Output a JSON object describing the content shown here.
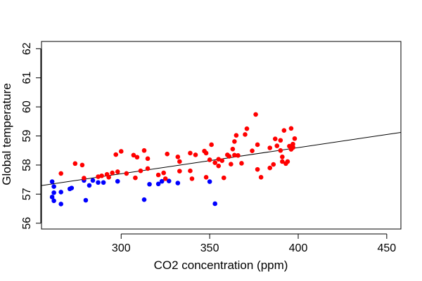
{
  "chart_data": {
    "type": "scatter",
    "xlabel": "CO2 concentration (ppm)",
    "ylabel": "Global temperature",
    "xlim": [
      255,
      458
    ],
    "ylim": [
      55.8,
      62.25
    ],
    "x_ticks": [
      "300",
      "350",
      "400",
      "450"
    ],
    "x_tick_values": [
      300,
      350,
      400,
      450
    ],
    "y_ticks": [
      "56",
      "57",
      "58",
      "59",
      "60",
      "61",
      "62"
    ],
    "y_tick_values": [
      56,
      57,
      58,
      59,
      60,
      61,
      62
    ],
    "grid": false,
    "legend": "none",
    "series": [
      {
        "color": "#0000ff",
        "points": [
          [
            261,
            57.43
          ],
          [
            262,
            57.26
          ],
          [
            262,
            57.05
          ],
          [
            261,
            56.9
          ],
          [
            262,
            56.77
          ],
          [
            266,
            57.07
          ],
          [
            266,
            56.66
          ],
          [
            271,
            57.18
          ],
          [
            272,
            57.21
          ],
          [
            279,
            57.47
          ],
          [
            280,
            56.79
          ],
          [
            282,
            57.3
          ],
          [
            284,
            57.47
          ],
          [
            287,
            57.4
          ],
          [
            290,
            57.4
          ],
          [
            298,
            57.44
          ],
          [
            313,
            56.81
          ],
          [
            316,
            57.34
          ],
          [
            321,
            57.35
          ],
          [
            323,
            57.44
          ],
          [
            327,
            57.45
          ],
          [
            332,
            57.38
          ],
          [
            350,
            57.43
          ],
          [
            353,
            56.67
          ]
        ]
      },
      {
        "color": "#ff0000",
        "points": [
          [
            266,
            57.71
          ],
          [
            274,
            58.05
          ],
          [
            278,
            58.0
          ],
          [
            279,
            57.55
          ],
          [
            287,
            57.6
          ],
          [
            289,
            57.63
          ],
          [
            292,
            57.68
          ],
          [
            293,
            57.58
          ],
          [
            295,
            57.73
          ],
          [
            297,
            58.36
          ],
          [
            298,
            57.77
          ],
          [
            300,
            58.47
          ],
          [
            303,
            57.71
          ],
          [
            307,
            58.34
          ],
          [
            308,
            57.56
          ],
          [
            309,
            58.27
          ],
          [
            311,
            57.8
          ],
          [
            313,
            58.5
          ],
          [
            315,
            57.88
          ],
          [
            315,
            58.22
          ],
          [
            321,
            57.66
          ],
          [
            324,
            57.73
          ],
          [
            326,
            58.38
          ],
          [
            325,
            57.53
          ],
          [
            332,
            58.28
          ],
          [
            333,
            58.12
          ],
          [
            333,
            57.79
          ],
          [
            339,
            58.41
          ],
          [
            339,
            57.8
          ],
          [
            340,
            57.53
          ],
          [
            342,
            58.35
          ],
          [
            347,
            58.48
          ],
          [
            348,
            58.41
          ],
          [
            348,
            57.58
          ],
          [
            350,
            58.18
          ],
          [
            351,
            58.7
          ],
          [
            353,
            58.08
          ],
          [
            355,
            58.2
          ],
          [
            355,
            57.97
          ],
          [
            357,
            58.15
          ],
          [
            358,
            57.56
          ],
          [
            360,
            58.35
          ],
          [
            361,
            58.3
          ],
          [
            362,
            58.03
          ],
          [
            363,
            58.55
          ],
          [
            364,
            58.81
          ],
          [
            365,
            59.02
          ],
          [
            364,
            58.34
          ],
          [
            366,
            58.33
          ],
          [
            368,
            58.06
          ],
          [
            370,
            59.05
          ],
          [
            371,
            59.25
          ],
          [
            374,
            58.49
          ],
          [
            376,
            59.74
          ],
          [
            377,
            58.7
          ],
          [
            377,
            57.85
          ],
          [
            379,
            57.58
          ],
          [
            384,
            58.59
          ],
          [
            384,
            57.9
          ],
          [
            386,
            58.02
          ],
          [
            387,
            58.9
          ],
          [
            388,
            58.66
          ],
          [
            390,
            58.85
          ],
          [
            390,
            58.5
          ],
          [
            391,
            58.28
          ],
          [
            391,
            58.12
          ],
          [
            392,
            59.19
          ],
          [
            393,
            58.05
          ],
          [
            394,
            58.12
          ],
          [
            395,
            58.65
          ],
          [
            396,
            59.26
          ],
          [
            396,
            58.54
          ],
          [
            397,
            58.62
          ],
          [
            397,
            58.72
          ],
          [
            398,
            58.91
          ],
          [
            397,
            58.6
          ]
        ]
      }
    ],
    "trend_line": {
      "slope": 0.009,
      "intercept": 55.0
    }
  }
}
